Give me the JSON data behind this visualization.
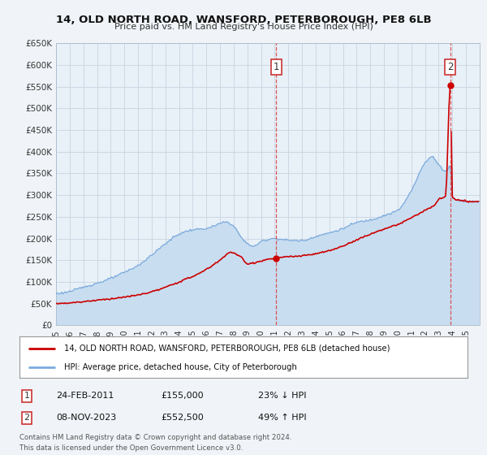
{
  "title": "14, OLD NORTH ROAD, WANSFORD, PETERBOROUGH, PE8 6LB",
  "subtitle": "Price paid vs. HM Land Registry's House Price Index (HPI)",
  "bg_color": "#f0f4f8",
  "plot_bg_color": "#e8f0f8",
  "grid_color": "#c8d4e0",
  "ylim": [
    0,
    650000
  ],
  "xlim_start": 1995.0,
  "xlim_end": 2026.0,
  "yticks": [
    0,
    50000,
    100000,
    150000,
    200000,
    250000,
    300000,
    350000,
    400000,
    450000,
    500000,
    550000,
    600000,
    650000
  ],
  "ytick_labels": [
    "£0",
    "£50K",
    "£100K",
    "£150K",
    "£200K",
    "£250K",
    "£300K",
    "£350K",
    "£400K",
    "£450K",
    "£500K",
    "£550K",
    "£600K",
    "£650K"
  ],
  "sale1_x": 2011.12,
  "sale1_y": 155000,
  "sale2_x": 2023.85,
  "sale2_y": 552500,
  "red_line_color": "#cc0000",
  "blue_line_color": "#7aaadd",
  "blue_fill_color": "#c8ddf0",
  "dot_color": "#cc0000",
  "dashed_line_color": "#dd4444",
  "legend_label_red": "14, OLD NORTH ROAD, WANSFORD, PETERBOROUGH, PE8 6LB (detached house)",
  "legend_label_blue": "HPI: Average price, detached house, City of Peterborough",
  "sale1_date": "24-FEB-2011",
  "sale1_price": "£155,000",
  "sale1_hpi": "23% ↓ HPI",
  "sale2_date": "08-NOV-2023",
  "sale2_price": "£552,500",
  "sale2_hpi": "49% ↑ HPI",
  "footnote1": "Contains HM Land Registry data © Crown copyright and database right 2024.",
  "footnote2": "This data is licensed under the Open Government Licence v3.0."
}
